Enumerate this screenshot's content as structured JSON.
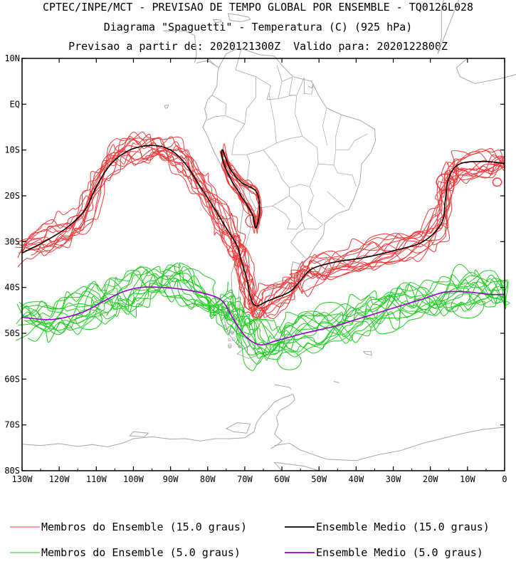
{
  "header": {
    "line1": "CPTEC/INPE/MCT - PREVISAO DE TEMPO GLOBAL POR ENSEMBLE - TQ0126L028",
    "line2": "Diagrama \"Spaguetti\" - Temperatura (C) (925 hPa)",
    "line3": "Previsao a partir de: 2020121300Z  Valido para: 2020122800Z"
  },
  "chart_data": {
    "type": "line",
    "title": "Diagrama \"Spaguetti\" - Temperatura (C) (925 hPa)",
    "xlabel": "",
    "ylabel": "",
    "xlim": [
      -130,
      0
    ],
    "ylim": [
      -80,
      10
    ],
    "x_ticks": [
      {
        "value": -130,
        "label": "130W"
      },
      {
        "value": -120,
        "label": "120W"
      },
      {
        "value": -110,
        "label": "110W"
      },
      {
        "value": -100,
        "label": "100W"
      },
      {
        "value": -90,
        "label": "90W"
      },
      {
        "value": -80,
        "label": "80W"
      },
      {
        "value": -70,
        "label": "70W"
      },
      {
        "value": -60,
        "label": "60W"
      },
      {
        "value": -50,
        "label": "50W"
      },
      {
        "value": -40,
        "label": "40W"
      },
      {
        "value": -30,
        "label": "30W"
      },
      {
        "value": -20,
        "label": "20W"
      },
      {
        "value": -10,
        "label": "10W"
      },
      {
        "value": 0,
        "label": "0"
      }
    ],
    "y_ticks": [
      {
        "value": 10,
        "label": "10N"
      },
      {
        "value": 0,
        "label": "EQ"
      },
      {
        "value": -10,
        "label": "10S"
      },
      {
        "value": -20,
        "label": "20S"
      },
      {
        "value": -30,
        "label": "30S"
      },
      {
        "value": -40,
        "label": "40S"
      },
      {
        "value": -50,
        "label": "50S"
      },
      {
        "value": -60,
        "label": "60S"
      },
      {
        "value": -70,
        "label": "70S"
      },
      {
        "value": -80,
        "label": "80S"
      }
    ],
    "grid": false,
    "legend_position": "bottom",
    "colors": {
      "members_15": "#ee3b3b",
      "mean_15": "#000000",
      "members_5": "#22cc22",
      "mean_5": "#9900cc",
      "coast": "#a8a8a8"
    },
    "series": [
      {
        "name": "Ensemble Medio (15.0 graus)",
        "role": "mean_15",
        "points": [
          [
            -130,
            -32.5
          ],
          [
            -124,
            -30
          ],
          [
            -118,
            -27
          ],
          [
            -113,
            -23
          ],
          [
            -110,
            -18
          ],
          [
            -106,
            -13
          ],
          [
            -101,
            -10
          ],
          [
            -95,
            -9
          ],
          [
            -90,
            -10
          ],
          [
            -86,
            -13
          ],
          [
            -82,
            -18
          ],
          [
            -78,
            -23
          ],
          [
            -75,
            -27
          ],
          [
            -72,
            -31
          ],
          [
            -71,
            -34
          ],
          [
            -69.5,
            -38
          ],
          [
            -68.5,
            -42
          ],
          [
            -67,
            -44
          ],
          [
            -64,
            -43
          ],
          [
            -58,
            -41
          ],
          [
            -55,
            -38.5
          ],
          [
            -52,
            -36
          ],
          [
            -46,
            -34.5
          ],
          [
            -38,
            -33.5
          ],
          [
            -30,
            -32
          ],
          [
            -22,
            -30
          ],
          [
            -17,
            -26
          ],
          [
            -16,
            -21
          ],
          [
            -15,
            -16
          ],
          [
            -12,
            -13
          ],
          [
            -5,
            -12.5
          ],
          [
            0,
            -13
          ]
        ]
      },
      {
        "name": "Ensemble Medio (15.0 graus) - Andes",
        "role": "mean_15",
        "points": [
          [
            -76,
            -10
          ],
          [
            -74,
            -14
          ],
          [
            -71,
            -17
          ],
          [
            -67,
            -19
          ],
          [
            -66,
            -23
          ],
          [
            -67,
            -27
          ],
          [
            -68,
            -24
          ],
          [
            -71,
            -20
          ],
          [
            -74,
            -16
          ],
          [
            -76,
            -12
          ],
          [
            -76,
            -10
          ]
        ]
      },
      {
        "name": "Ensemble Medio (5.0 graus)",
        "role": "mean_5",
        "points": [
          [
            -130,
            -46.5
          ],
          [
            -122,
            -47
          ],
          [
            -114,
            -45.5
          ],
          [
            -108,
            -43
          ],
          [
            -103,
            -41
          ],
          [
            -98,
            -40
          ],
          [
            -92,
            -40
          ],
          [
            -86,
            -40.5
          ],
          [
            -80,
            -41.5
          ],
          [
            -76,
            -43
          ],
          [
            -73,
            -47
          ],
          [
            -70,
            -50.5
          ],
          [
            -66,
            -52.5
          ],
          [
            -61,
            -51.5
          ],
          [
            -54,
            -50
          ],
          [
            -46,
            -48.5
          ],
          [
            -40,
            -47
          ],
          [
            -34,
            -45.5
          ],
          [
            -28,
            -44
          ],
          [
            -22,
            -42.5
          ],
          [
            -16,
            -41
          ],
          [
            -10,
            -41
          ],
          [
            -4,
            -41.5
          ],
          [
            0,
            -41.5
          ]
        ]
      }
    ],
    "legend": [
      {
        "label": "Membros do Ensemble (15.0 graus)",
        "color": "#ee3b3b"
      },
      {
        "label": "Ensemble Medio (15.0 graus)",
        "color": "#000000"
      },
      {
        "label": "Membros do Ensemble (5.0 graus)",
        "color": "#22cc22"
      },
      {
        "label": "Ensemble Medio (5.0 graus)",
        "color": "#9900cc"
      }
    ]
  }
}
